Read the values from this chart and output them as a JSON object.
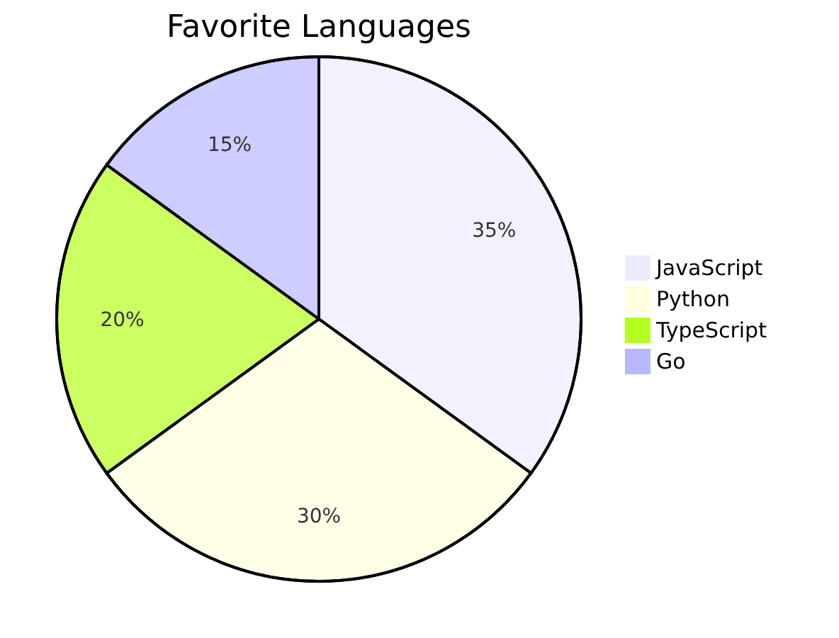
{
  "chart_data": {
    "type": "pie",
    "title": "Favorite Languages",
    "categories": [
      "JavaScript",
      "Python",
      "TypeScript",
      "Go"
    ],
    "values": [
      35,
      30,
      20,
      15
    ],
    "colors": [
      "#ececff",
      "#ffffde",
      "#b5ff20",
      "#b8b8ff"
    ],
    "value_labels": [
      "35%",
      "30%",
      "20%",
      "15%"
    ],
    "legend": "right"
  }
}
